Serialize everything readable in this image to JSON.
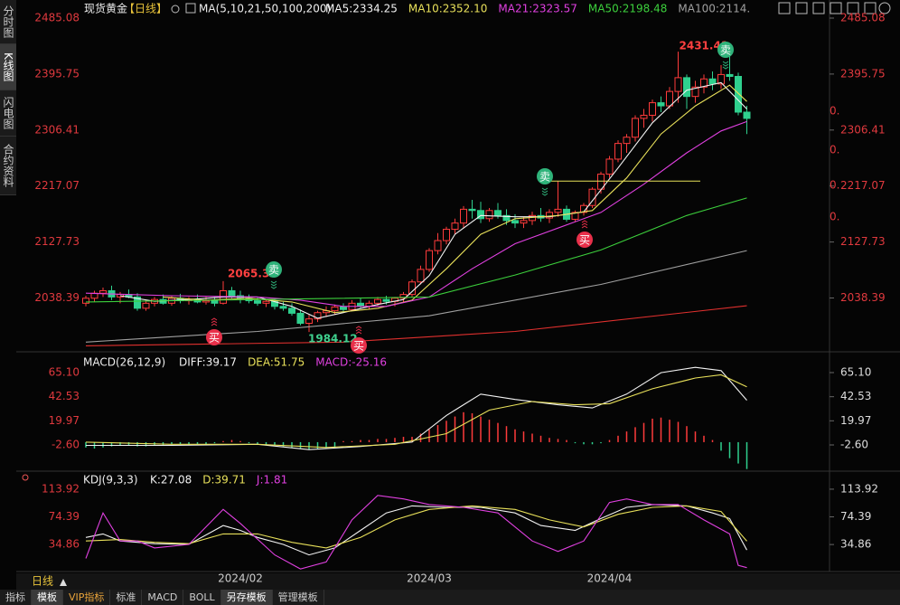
{
  "sidebar_tabs": [
    "分时图",
    "K线图",
    "闪电图",
    "合约资料"
  ],
  "chart_data": [
    {
      "type": "candlestick",
      "title": "现货黄金",
      "period": "【日线】",
      "indicator": "MA(5,10,21,50,100,200)",
      "ylim": [
        1958.3,
        2485.08
      ],
      "yticks": [
        2485.08,
        2395.75,
        2306.41,
        2217.07,
        2127.73,
        2038.39
      ],
      "grid": false,
      "up_color": "#ff3b3b",
      "down_color": "#2fd08e",
      "candles": [
        [
          2030,
          2042,
          2025,
          2038
        ],
        [
          2038,
          2050,
          2032,
          2046
        ],
        [
          2046,
          2055,
          2040,
          2050
        ],
        [
          2050,
          2058,
          2035,
          2040
        ],
        [
          2040,
          2048,
          2030,
          2044
        ],
        [
          2044,
          2052,
          2038,
          2040
        ],
        [
          2040,
          2046,
          2018,
          2022
        ],
        [
          2022,
          2035,
          2018,
          2030
        ],
        [
          2030,
          2040,
          2025,
          2036
        ],
        [
          2036,
          2044,
          2028,
          2030
        ],
        [
          2030,
          2042,
          2026,
          2038
        ],
        [
          2038,
          2045,
          2030,
          2034
        ],
        [
          2034,
          2040,
          2028,
          2036
        ],
        [
          2036,
          2044,
          2030,
          2032
        ],
        [
          2032,
          2040,
          2028,
          2034
        ],
        [
          2034,
          2040,
          2025,
          2030
        ],
        [
          2030,
          2065.32,
          2028,
          2050
        ],
        [
          2050,
          2056,
          2038,
          2042
        ],
        [
          2042,
          2050,
          2030,
          2038
        ],
        [
          2038,
          2044,
          2030,
          2034
        ],
        [
          2034,
          2040,
          2026,
          2030
        ],
        [
          2030,
          2036,
          2024,
          2033
        ],
        [
          2033,
          2038,
          2020,
          2025
        ],
        [
          2025,
          2032,
          2018,
          2022
        ],
        [
          2022,
          2030,
          2010,
          2014
        ],
        [
          2014,
          2020,
          1995,
          1998
        ],
        [
          1998,
          2012,
          1984.12,
          2005
        ],
        [
          2005,
          2018,
          2000,
          2015
        ],
        [
          2015,
          2025,
          2008,
          2018
        ],
        [
          2018,
          2028,
          2012,
          2024
        ],
        [
          2024,
          2030,
          2015,
          2020
        ],
        [
          2020,
          2035,
          2018,
          2030
        ],
        [
          2030,
          2038,
          2022,
          2025
        ],
        [
          2025,
          2034,
          2020,
          2030
        ],
        [
          2030,
          2040,
          2026,
          2036
        ],
        [
          2036,
          2042,
          2028,
          2033
        ],
        [
          2033,
          2040,
          2025,
          2038
        ],
        [
          2038,
          2048,
          2032,
          2044
        ],
        [
          2044,
          2068,
          2040,
          2064
        ],
        [
          2064,
          2090,
          2060,
          2084
        ],
        [
          2084,
          2118,
          2080,
          2114
        ],
        [
          2114,
          2142,
          2108,
          2130
        ],
        [
          2130,
          2152,
          2124,
          2148
        ],
        [
          2148,
          2165,
          2140,
          2158
        ],
        [
          2158,
          2185,
          2150,
          2180
        ],
        [
          2180,
          2195,
          2165,
          2178
        ],
        [
          2178,
          2192,
          2158,
          2165
        ],
        [
          2165,
          2182,
          2160,
          2178
        ],
        [
          2178,
          2190,
          2165,
          2170
        ],
        [
          2170,
          2180,
          2155,
          2162
        ],
        [
          2162,
          2172,
          2150,
          2158
        ],
        [
          2158,
          2168,
          2150,
          2162
        ],
        [
          2162,
          2176,
          2155,
          2170
        ],
        [
          2170,
          2182,
          2160,
          2166
        ],
        [
          2166,
          2180,
          2158,
          2175
        ],
        [
          2175,
          2225,
          2168,
          2180
        ],
        [
          2180,
          2186,
          2160,
          2164
        ],
        [
          2164,
          2178,
          2160,
          2175
        ],
        [
          2175,
          2190,
          2170,
          2186
        ],
        [
          2186,
          2215,
          2182,
          2212
        ],
        [
          2212,
          2240,
          2205,
          2236
        ],
        [
          2236,
          2265,
          2230,
          2260
        ],
        [
          2260,
          2290,
          2255,
          2285
        ],
        [
          2285,
          2300,
          2270,
          2295
        ],
        [
          2295,
          2330,
          2288,
          2325
        ],
        [
          2325,
          2340,
          2310,
          2330
        ],
        [
          2330,
          2355,
          2320,
          2350
        ],
        [
          2350,
          2360,
          2335,
          2345
        ],
        [
          2345,
          2375,
          2340,
          2368
        ],
        [
          2368,
          2431.41,
          2350,
          2390
        ],
        [
          2390,
          2395,
          2340,
          2360
        ],
        [
          2360,
          2385,
          2350,
          2375
        ],
        [
          2375,
          2395,
          2365,
          2388
        ],
        [
          2388,
          2400,
          2370,
          2380
        ],
        [
          2380,
          2410,
          2372,
          2395
        ],
        [
          2395,
          2425,
          2385,
          2392
        ],
        [
          2392,
          2398,
          2330,
          2335
        ],
        [
          2335,
          2345,
          2300,
          2325
        ]
      ],
      "categories": [
        null,
        null,
        null,
        null,
        null,
        null,
        null,
        null,
        null,
        null,
        null,
        null,
        null,
        null,
        null,
        null,
        null,
        null,
        "2024/02",
        null,
        null,
        null,
        null,
        null,
        null,
        null,
        null,
        null,
        null,
        null,
        null,
        null,
        null,
        null,
        null,
        null,
        null,
        null,
        null,
        null,
        "2024/03",
        null,
        null,
        null,
        null,
        null,
        null,
        null,
        null,
        null,
        null,
        null,
        null,
        null,
        null,
        null,
        null,
        null,
        null,
        null,
        null,
        "2024/04",
        null,
        null,
        null,
        null,
        null,
        null,
        null,
        null,
        null,
        null,
        null,
        null,
        null,
        null,
        null,
        null
      ],
      "series": [
        {
          "name": "MA5:2334.25",
          "color": "#f2f2f2",
          "x": [
            4,
            8,
            12,
            16,
            20,
            24,
            27,
            30,
            34,
            37,
            40,
            43,
            46,
            50,
            54,
            58,
            62,
            66,
            70,
            74,
            77
          ],
          "values": [
            2042,
            2033,
            2036,
            2040,
            2040,
            2025,
            2006,
            2015,
            2028,
            2036,
            2074,
            2140,
            2170,
            2168,
            2168,
            2176,
            2246,
            2318,
            2370,
            2382,
            2340
          ]
        },
        {
          "name": "MA10:2352.10",
          "color": "#e8e05a",
          "x": [
            9,
            14,
            19,
            24,
            29,
            34,
            38,
            42,
            46,
            50,
            55,
            59,
            63,
            67,
            71,
            75,
            77
          ],
          "values": [
            2040,
            2035,
            2038,
            2032,
            2015,
            2022,
            2035,
            2085,
            2140,
            2165,
            2170,
            2178,
            2230,
            2300,
            2345,
            2378,
            2352
          ]
        },
        {
          "name": "MA21:2323.57",
          "color": "#e040e0",
          "x": [
            0,
            10,
            20,
            25,
            30,
            35,
            40,
            45,
            50,
            55,
            60,
            65,
            70,
            74,
            77
          ],
          "values": [
            2046,
            2042,
            2040,
            2035,
            2025,
            2025,
            2040,
            2085,
            2125,
            2150,
            2175,
            2220,
            2270,
            2305,
            2320
          ]
        },
        {
          "name": "MA50:2198.48",
          "color": "#3ccf3c",
          "x": [
            0,
            20,
            40,
            50,
            60,
            70,
            77
          ],
          "values": [
            2032,
            2036,
            2040,
            2075,
            2115,
            2170,
            2198
          ]
        },
        {
          "name": "MA100:2114.",
          "color": "#a0a0a0",
          "x": [
            0,
            20,
            40,
            60,
            77
          ],
          "values": [
            1968,
            1985,
            2010,
            2060,
            2114
          ]
        },
        {
          "name": null,
          "color": "#e0302e",
          "x": [
            0,
            30,
            50,
            77
          ],
          "values": [
            1962,
            1968,
            1985,
            2026
          ]
        }
      ],
      "level_line": {
        "value": 2225,
        "color": "#e6e25a"
      },
      "side_labels": [
        "0.",
        "0.",
        "0.",
        "0."
      ],
      "signals": [
        {
          "label": "卖"
        },
        {
          "label": "卖"
        },
        {
          "label": "卖"
        },
        {
          "label": "买"
        },
        {
          "label": "买"
        },
        {
          "label": "买"
        }
      ]
    },
    {
      "type": "macd",
      "title": "MACD(26,12,9)",
      "ylim": [
        -26.3,
        79.5
      ],
      "yticks": [
        {
          "value": 65.1,
          "label": "65.10"
        },
        42.53,
        19.97,
        {
          "value": -2.6,
          "label": "-2.60"
        }
      ],
      "up_color": "#ff3b3b",
      "down_color": "#2fd08e",
      "bars": {
        "name": "MACD:-25.16",
        "color": "#e040e0",
        "values": [
          -5,
          -6,
          -5,
          -4,
          -3,
          -3,
          -4,
          -4,
          -3,
          -3,
          -2,
          -2,
          -3,
          -2,
          -2,
          -1,
          1,
          2,
          1,
          -1,
          -2,
          -3,
          -3,
          -4,
          -5,
          -6,
          -7,
          -6,
          -5,
          -5,
          1,
          1,
          2,
          2,
          3,
          3,
          4,
          5,
          5,
          8,
          12,
          16,
          20,
          24,
          28,
          27,
          24,
          21,
          18,
          15,
          12,
          10,
          8,
          6,
          4,
          3,
          2,
          -1,
          -2,
          -2,
          -1,
          2,
          6,
          10,
          14,
          18,
          22,
          23,
          21,
          19,
          15,
          10,
          6,
          2,
          -8,
          -15,
          -20,
          -25.16
        ]
      },
      "series": [
        {
          "name": "DIFF:39.17",
          "color": "#f2f2f2",
          "x": [
            0,
            10,
            20,
            26,
            32,
            38,
            42,
            46,
            50,
            55,
            59,
            63,
            67,
            71,
            74,
            77
          ],
          "values": [
            -3,
            -3,
            -2,
            -7,
            -4,
            0,
            25,
            45,
            40,
            35,
            32,
            45,
            65,
            70,
            67,
            39.17
          ]
        },
        {
          "name": "DEA:51.75",
          "color": "#e8e05a",
          "x": [
            0,
            10,
            20,
            28,
            36,
            42,
            47,
            52,
            57,
            61,
            66,
            71,
            74,
            77
          ],
          "values": [
            0,
            -2,
            -2,
            -5,
            -2,
            8,
            30,
            38,
            35,
            36,
            50,
            60,
            63,
            51.75
          ]
        }
      ]
    },
    {
      "type": "line",
      "title": "KDJ(9,3,3)",
      "ylim": [
        -7.6,
        134.5
      ],
      "yticks": [
        113.92,
        74.39,
        34.86
      ],
      "series": [
        {
          "name": "K:27.08",
          "color": "#f2f2f2",
          "x": [
            0,
            2,
            4,
            6,
            8,
            12,
            16,
            18,
            20,
            23,
            26,
            29,
            32,
            35,
            38,
            42,
            46,
            50,
            53,
            57,
            60,
            63,
            66,
            70,
            73,
            75,
            77
          ],
          "values": [
            45,
            50,
            40,
            38,
            36,
            35,
            62,
            55,
            45,
            35,
            20,
            30,
            55,
            80,
            90,
            88,
            88,
            80,
            62,
            55,
            72,
            88,
            92,
            90,
            80,
            72,
            27.08
          ]
        },
        {
          "name": "D:39.71",
          "color": "#e8e05a",
          "x": [
            0,
            4,
            8,
            12,
            16,
            20,
            24,
            28,
            32,
            36,
            40,
            45,
            50,
            54,
            58,
            62,
            66,
            70,
            74,
            77
          ],
          "values": [
            40,
            42,
            38,
            36,
            50,
            50,
            38,
            30,
            45,
            70,
            85,
            90,
            85,
            70,
            60,
            78,
            88,
            90,
            82,
            39.71
          ]
        },
        {
          "name": "J:1.81",
          "color": "#e040e0",
          "x": [
            0,
            2,
            4,
            6,
            8,
            12,
            16,
            18,
            22,
            25,
            28,
            31,
            34,
            37,
            40,
            44,
            48,
            52,
            55,
            58,
            61,
            63,
            66,
            69,
            72,
            75,
            76,
            77
          ],
          "values": [
            15,
            80,
            40,
            40,
            30,
            35,
            85,
            65,
            20,
            0,
            10,
            70,
            105,
            100,
            92,
            88,
            80,
            40,
            25,
            40,
            95,
            100,
            92,
            92,
            70,
            50,
            5,
            1.81
          ]
        }
      ]
    }
  ],
  "bottom_bar": {
    "period": "日线",
    "tabs": [
      "指标",
      "模板",
      "VIP指标",
      "标准",
      "MACD",
      "BOLL",
      "另存模板",
      "管理模板"
    ]
  }
}
